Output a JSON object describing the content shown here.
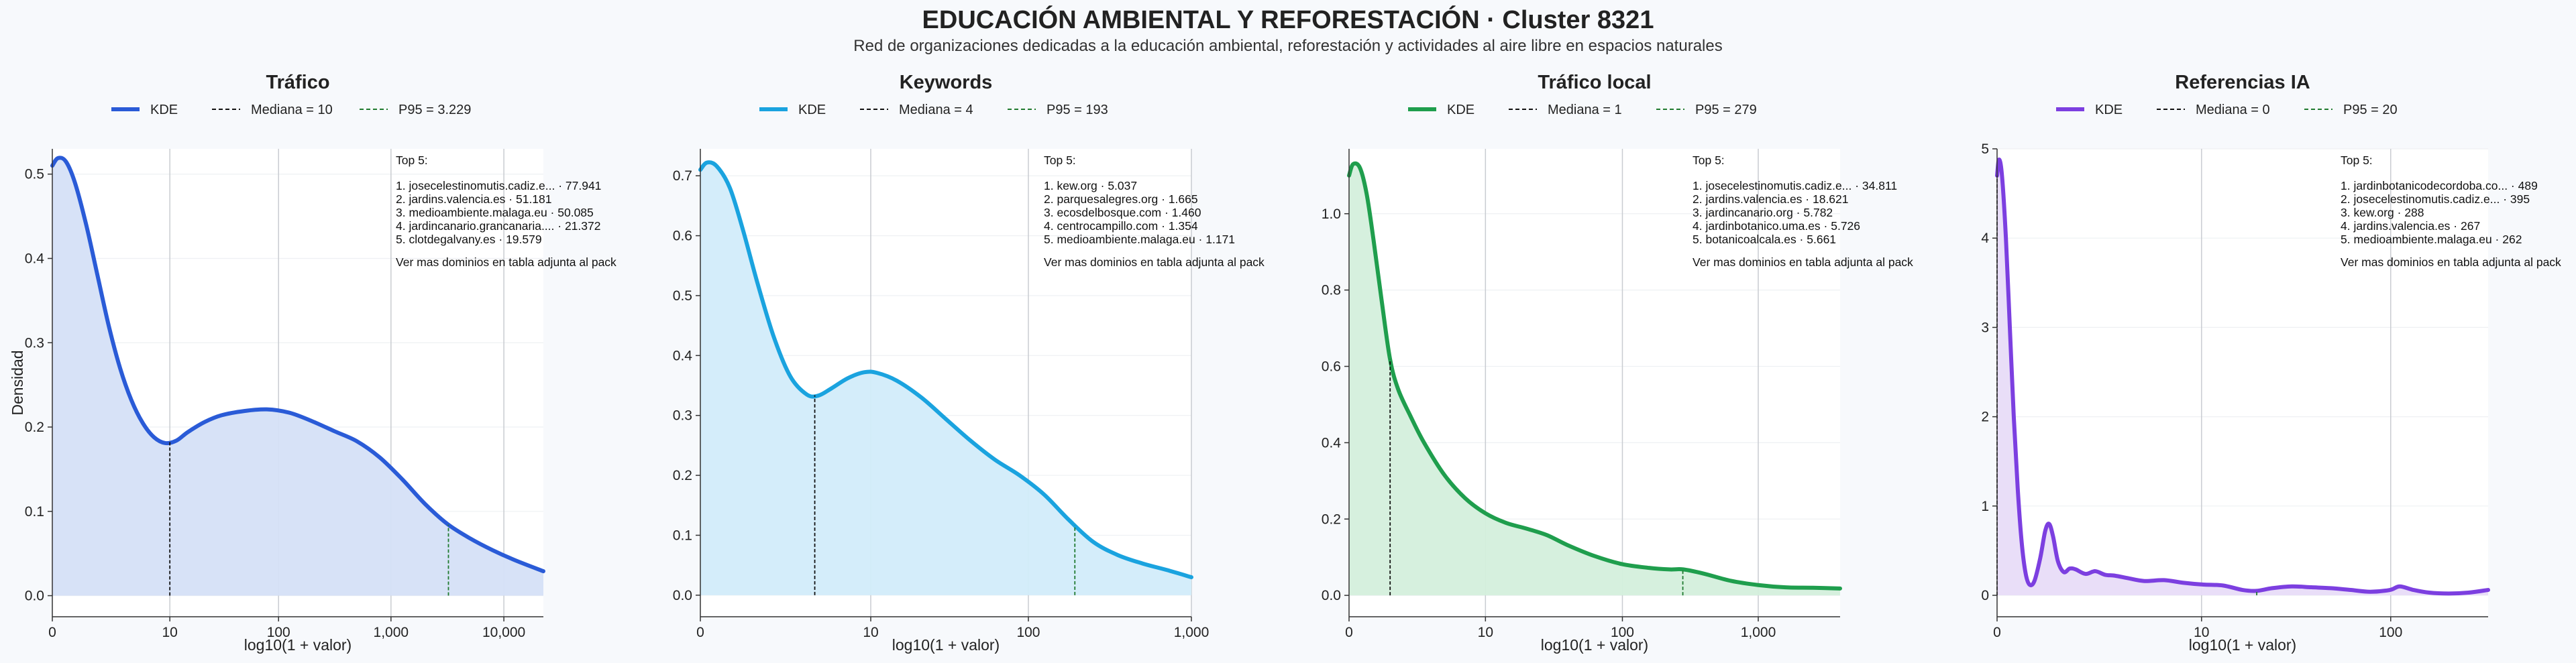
{
  "page": {
    "title": "EDUCACIÓN AMBIENTAL Y REFORESTACIÓN · Cluster 8321",
    "subtitle": "Red de organizaciones dedicadas a la educación ambiental, reforestación y actividades al aire libre en espacios naturales"
  },
  "chart_data": [
    {
      "type": "area",
      "title": "Tráfico",
      "xlabel": "log10(1 + valor)",
      "ylabel": "Densidad",
      "color": "#2a5bd7",
      "fill": "#d5e0f7",
      "x_scale": "log10(1+x)",
      "xlim": [
        0,
        4.35
      ],
      "ylim": [
        -0.025,
        0.53
      ],
      "yticks": [
        0.0,
        0.1,
        0.2,
        0.3,
        0.4,
        0.5
      ],
      "xticks": [
        {
          "v": 0,
          "label": "0"
        },
        {
          "v": 1.041,
          "label": "10"
        },
        {
          "v": 2.004,
          "label": "100"
        },
        {
          "v": 3.0,
          "label": "1,000"
        },
        {
          "v": 4.0,
          "label": "10,000"
        }
      ],
      "legend": {
        "kde": "KDE",
        "median": "Mediana = 10",
        "p95": "P95 = 3.229"
      },
      "median_x": 1.041,
      "p95_x": 3.509,
      "kde": [
        [
          0,
          0.51
        ],
        [
          0.05,
          0.519
        ],
        [
          0.12,
          0.515
        ],
        [
          0.2,
          0.49
        ],
        [
          0.3,
          0.44
        ],
        [
          0.4,
          0.38
        ],
        [
          0.5,
          0.32
        ],
        [
          0.6,
          0.27
        ],
        [
          0.7,
          0.232
        ],
        [
          0.8,
          0.205
        ],
        [
          0.9,
          0.188
        ],
        [
          1.0,
          0.181
        ],
        [
          1.1,
          0.184
        ],
        [
          1.2,
          0.194
        ],
        [
          1.35,
          0.206
        ],
        [
          1.5,
          0.214
        ],
        [
          1.7,
          0.219
        ],
        [
          1.9,
          0.221
        ],
        [
          2.1,
          0.217
        ],
        [
          2.3,
          0.207
        ],
        [
          2.5,
          0.195
        ],
        [
          2.7,
          0.183
        ],
        [
          2.9,
          0.164
        ],
        [
          3.1,
          0.138
        ],
        [
          3.3,
          0.109
        ],
        [
          3.5,
          0.085
        ],
        [
          3.7,
          0.068
        ],
        [
          3.9,
          0.054
        ],
        [
          4.1,
          0.042
        ],
        [
          4.35,
          0.029
        ]
      ],
      "top_title": "Top 5:",
      "top": [
        "1. josecelestinomutis.cadiz.e... · 77.941",
        "2. jardins.valencia.es · 51.181",
        "3. medioambiente.malaga.eu · 50.085",
        "4. jardincanario.grancanaria.... · 21.372",
        "5. clotdegalvany.es · 19.579"
      ],
      "footer": "Ver mas dominios en tabla adjunta al pack"
    },
    {
      "type": "area",
      "title": "Keywords",
      "xlabel": "log10(1 + valor)",
      "ylabel": "",
      "color": "#1aa3df",
      "fill": "#d2ecfa",
      "x_scale": "log10(1+x)",
      "xlim": [
        0,
        3.0
      ],
      "ylim": [
        -0.036,
        0.745
      ],
      "yticks": [
        0.0,
        0.1,
        0.2,
        0.3,
        0.4,
        0.5,
        0.6,
        0.7
      ],
      "xticks": [
        {
          "v": 0,
          "label": "0"
        },
        {
          "v": 1.041,
          "label": "10"
        },
        {
          "v": 2.004,
          "label": "100"
        },
        {
          "v": 3.0,
          "label": "1,000"
        }
      ],
      "legend": {
        "kde": "KDE",
        "median": "Mediana = 4",
        "p95": "P95 = 193"
      },
      "median_x": 0.699,
      "p95_x": 2.288,
      "kde": [
        [
          0,
          0.71
        ],
        [
          0.04,
          0.722
        ],
        [
          0.1,
          0.716
        ],
        [
          0.18,
          0.68
        ],
        [
          0.26,
          0.61
        ],
        [
          0.35,
          0.52
        ],
        [
          0.45,
          0.43
        ],
        [
          0.55,
          0.365
        ],
        [
          0.65,
          0.335
        ],
        [
          0.72,
          0.333
        ],
        [
          0.8,
          0.345
        ],
        [
          0.9,
          0.362
        ],
        [
          1.0,
          0.372
        ],
        [
          1.08,
          0.371
        ],
        [
          1.2,
          0.358
        ],
        [
          1.35,
          0.33
        ],
        [
          1.5,
          0.294
        ],
        [
          1.65,
          0.258
        ],
        [
          1.8,
          0.226
        ],
        [
          1.95,
          0.2
        ],
        [
          2.1,
          0.168
        ],
        [
          2.25,
          0.126
        ],
        [
          2.4,
          0.089
        ],
        [
          2.55,
          0.067
        ],
        [
          2.7,
          0.053
        ],
        [
          2.85,
          0.042
        ],
        [
          3.0,
          0.03
        ]
      ],
      "top_title": "Top 5:",
      "top": [
        "1. kew.org · 5.037",
        "2. parquesalegres.org · 1.665",
        "3. ecosdelbosque.com · 1.460",
        "4. centrocampillo.com · 1.354",
        "5. medioambiente.malaga.eu · 1.171"
      ],
      "footer": "Ver mas dominios en tabla adjunta al pack"
    },
    {
      "type": "area",
      "title": "Tráfico local",
      "xlabel": "log10(1 + valor)",
      "ylabel": "",
      "color": "#1f9e4d",
      "fill": "#d4efdc",
      "x_scale": "log10(1+x)",
      "xlim": [
        0,
        3.6
      ],
      "ylim": [
        -0.056,
        1.17
      ],
      "yticks": [
        0.0,
        0.2,
        0.4,
        0.6,
        0.8,
        1.0
      ],
      "xticks": [
        {
          "v": 0,
          "label": "0"
        },
        {
          "v": 1.0,
          "label": "10"
        },
        {
          "v": 2.004,
          "label": "100"
        },
        {
          "v": 3.0,
          "label": "1,000"
        }
      ],
      "legend": {
        "kde": "KDE",
        "median": "Mediana = 1",
        "p95": "P95 = 279"
      },
      "median_x": 0.301,
      "p95_x": 2.447,
      "kde": [
        [
          0,
          1.1
        ],
        [
          0.03,
          1.13
        ],
        [
          0.08,
          1.12
        ],
        [
          0.13,
          1.05
        ],
        [
          0.18,
          0.93
        ],
        [
          0.24,
          0.77
        ],
        [
          0.3,
          0.62
        ],
        [
          0.36,
          0.54
        ],
        [
          0.45,
          0.47
        ],
        [
          0.55,
          0.4
        ],
        [
          0.7,
          0.315
        ],
        [
          0.85,
          0.255
        ],
        [
          1.0,
          0.215
        ],
        [
          1.15,
          0.19
        ],
        [
          1.3,
          0.175
        ],
        [
          1.45,
          0.158
        ],
        [
          1.6,
          0.132
        ],
        [
          1.8,
          0.103
        ],
        [
          2.0,
          0.082
        ],
        [
          2.2,
          0.072
        ],
        [
          2.35,
          0.068
        ],
        [
          2.45,
          0.068
        ],
        [
          2.6,
          0.057
        ],
        [
          2.8,
          0.038
        ],
        [
          3.0,
          0.027
        ],
        [
          3.2,
          0.021
        ],
        [
          3.4,
          0.02
        ],
        [
          3.6,
          0.018
        ]
      ],
      "top_title": "Top 5:",
      "top": [
        "1. josecelestinomutis.cadiz.e... · 34.811",
        "2. jardins.valencia.es · 18.621",
        "3. jardincanario.org · 5.782",
        "4. jardinbotanico.uma.es · 5.726",
        "5. botanicoalcala.es · 5.661"
      ],
      "footer": "Ver mas dominios en tabla adjunta al pack"
    },
    {
      "type": "area",
      "title": "Referencias IA",
      "xlabel": "log10(1 + valor)",
      "ylabel": "",
      "color": "#7c3fe0",
      "fill": "#e8dcf8",
      "x_scale": "log10(1+x)",
      "xlim": [
        0,
        2.5
      ],
      "ylim": [
        -0.24,
        5.0
      ],
      "yticks": [
        0,
        1,
        2,
        3,
        4,
        5
      ],
      "xticks": [
        {
          "v": 0,
          "label": "0"
        },
        {
          "v": 1.041,
          "label": "10"
        },
        {
          "v": 2.004,
          "label": "100"
        }
      ],
      "legend": {
        "kde": "KDE",
        "median": "Mediana = 0",
        "p95": "P95 = 20"
      },
      "median_x": 0.0,
      "p95_x": 1.322,
      "kde": [
        [
          0,
          4.7
        ],
        [
          0.01,
          4.88
        ],
        [
          0.025,
          4.7
        ],
        [
          0.045,
          4.0
        ],
        [
          0.065,
          3.0
        ],
        [
          0.085,
          2.0
        ],
        [
          0.105,
          1.2
        ],
        [
          0.125,
          0.6
        ],
        [
          0.145,
          0.25
        ],
        [
          0.165,
          0.12
        ],
        [
          0.19,
          0.16
        ],
        [
          0.22,
          0.42
        ],
        [
          0.245,
          0.72
        ],
        [
          0.265,
          0.8
        ],
        [
          0.285,
          0.66
        ],
        [
          0.31,
          0.38
        ],
        [
          0.34,
          0.26
        ],
        [
          0.37,
          0.3
        ],
        [
          0.4,
          0.29
        ],
        [
          0.45,
          0.24
        ],
        [
          0.5,
          0.27
        ],
        [
          0.55,
          0.23
        ],
        [
          0.6,
          0.22
        ],
        [
          0.67,
          0.19
        ],
        [
          0.75,
          0.16
        ],
        [
          0.85,
          0.17
        ],
        [
          0.95,
          0.14
        ],
        [
          1.05,
          0.12
        ],
        [
          1.15,
          0.11
        ],
        [
          1.25,
          0.06
        ],
        [
          1.32,
          0.05
        ],
        [
          1.4,
          0.08
        ],
        [
          1.5,
          0.1
        ],
        [
          1.6,
          0.09
        ],
        [
          1.7,
          0.08
        ],
        [
          1.8,
          0.06
        ],
        [
          1.9,
          0.04
        ],
        [
          2.0,
          0.06
        ],
        [
          2.05,
          0.1
        ],
        [
          2.12,
          0.06
        ],
        [
          2.2,
          0.03
        ],
        [
          2.3,
          0.02
        ],
        [
          2.4,
          0.03
        ],
        [
          2.5,
          0.06
        ]
      ],
      "top_title": "Top 5:",
      "top": [
        "1. jardinbotanicodecordoba.co... · 489",
        "2. josecelestinomutis.cadiz.e... · 395",
        "3. kew.org · 288",
        "4. jardins.valencia.es · 267",
        "5. medioambiente.malaga.eu · 262"
      ],
      "footer": "Ver mas dominios en tabla adjunta al pack"
    }
  ]
}
